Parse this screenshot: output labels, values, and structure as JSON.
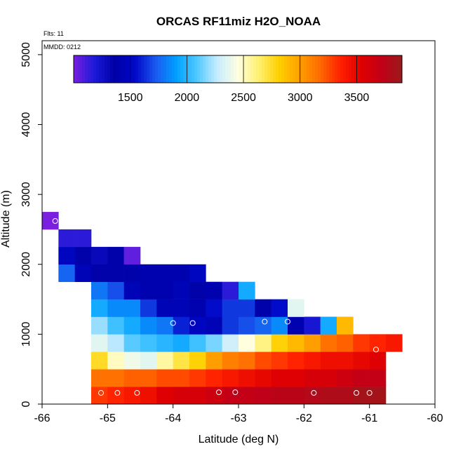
{
  "chart_data": {
    "type": "heatmap",
    "title": "ORCAS RF11miz H2O_NOAA",
    "xlabel": "Latitude (deg N)",
    "ylabel": "Altitude (m)",
    "flts_note": "Flts: 11",
    "mmdd_note": "MMDD: 0212",
    "xlim": [
      -66,
      -60
    ],
    "ylim": [
      0,
      5200
    ],
    "x_ticks": [
      -66,
      -65,
      -64,
      -63,
      -62,
      -61,
      -60
    ],
    "y_ticks": [
      0,
      1000,
      2000,
      3000,
      4000,
      5000
    ],
    "colorbar": {
      "range": [
        1000,
        3900
      ],
      "ticks": [
        1500,
        2000,
        2500,
        3000,
        3500
      ],
      "colors": [
        "#7a1fe0",
        "#1a1ad8",
        "#0000a8",
        "#0008c8",
        "#1a5af0",
        "#00a0ff",
        "#50c8ff",
        "#c8ecff",
        "#ffffe0",
        "#fff070",
        "#ffd000",
        "#ffa000",
        "#ff6a00",
        "#ff2000",
        "#e00000",
        "#c00018",
        "#9a1a1a"
      ]
    },
    "cell_width_deg": 0.25,
    "cell_height_m": 250,
    "rows": [
      {
        "alt": 125,
        "start": -65.25,
        "values": [
          3300,
          3350,
          3400,
          3450,
          3550,
          3600,
          3600,
          3650,
          3700,
          3700,
          3720,
          3750,
          3750,
          3780,
          3800,
          3800,
          3850,
          3850
        ]
      },
      {
        "alt": 375,
        "start": -65.25,
        "values": [
          3150,
          3150,
          3200,
          3200,
          3250,
          3250,
          3300,
          3350,
          3400,
          3450,
          3500,
          3550,
          3550,
          3600,
          3600,
          3650,
          3700,
          3700
        ]
      },
      {
        "alt": 625,
        "start": -65.25,
        "values": [
          2750,
          2500,
          2400,
          2350,
          2550,
          2700,
          2800,
          3000,
          3100,
          3150,
          3250,
          3300,
          3350,
          3400,
          3450,
          3450,
          3500,
          3550
        ]
      },
      {
        "alt": 875,
        "start": -65.25,
        "values": [
          2350,
          2250,
          2100,
          2050,
          2000,
          1950,
          2050,
          2150,
          2300,
          2450,
          2600,
          2800,
          2900,
          3000,
          3150,
          3200,
          3300,
          3350,
          3400
        ]
      },
      {
        "alt": 1125,
        "start": -65.25,
        "values": [
          2200,
          2050,
          1950,
          1850,
          1800,
          1600,
          1500,
          1450,
          1650,
          1700,
          1750,
          1850,
          1400,
          1200,
          1950,
          2900
        ]
      },
      {
        "alt": 1375,
        "start": -65.25,
        "values": [
          1950,
          1850,
          1850,
          1650,
          1450,
          1450,
          1400,
          1550,
          1650,
          1650,
          1350,
          1550,
          2350
        ]
      },
      {
        "alt": 1625,
        "start": -65.25,
        "values": [
          1800,
          1700,
          1450,
          1400,
          1400,
          1450,
          1350,
          1400,
          1150,
          1950
        ]
      },
      {
        "alt": 1875,
        "start": -65.75,
        "values": [
          1750,
          1450,
          1350,
          1350,
          1350,
          1400,
          1400,
          1400,
          1500
        ]
      },
      {
        "alt": 2125,
        "start": -65.75,
        "values": [
          1500,
          1350,
          1300,
          1350,
          1050
        ]
      },
      {
        "alt": 2375,
        "start": -65.75,
        "values": [
          1150,
          1150
        ]
      },
      {
        "alt": 2625,
        "start": -66.0,
        "values": [
          1000
        ]
      }
    ],
    "points": [
      {
        "lat": -65.1,
        "alt": 160
      },
      {
        "lat": -64.85,
        "alt": 160
      },
      {
        "lat": -64.55,
        "alt": 160
      },
      {
        "lat": -63.3,
        "alt": 170
      },
      {
        "lat": -63.05,
        "alt": 170
      },
      {
        "lat": -61.85,
        "alt": 160
      },
      {
        "lat": -61.2,
        "alt": 160
      },
      {
        "lat": -61.0,
        "alt": 160
      },
      {
        "lat": -64.0,
        "alt": 1160
      },
      {
        "lat": -63.7,
        "alt": 1160
      },
      {
        "lat": -62.6,
        "alt": 1180
      },
      {
        "lat": -62.25,
        "alt": 1180
      },
      {
        "lat": -60.9,
        "alt": 780
      },
      {
        "lat": -65.8,
        "alt": 2620
      }
    ]
  }
}
